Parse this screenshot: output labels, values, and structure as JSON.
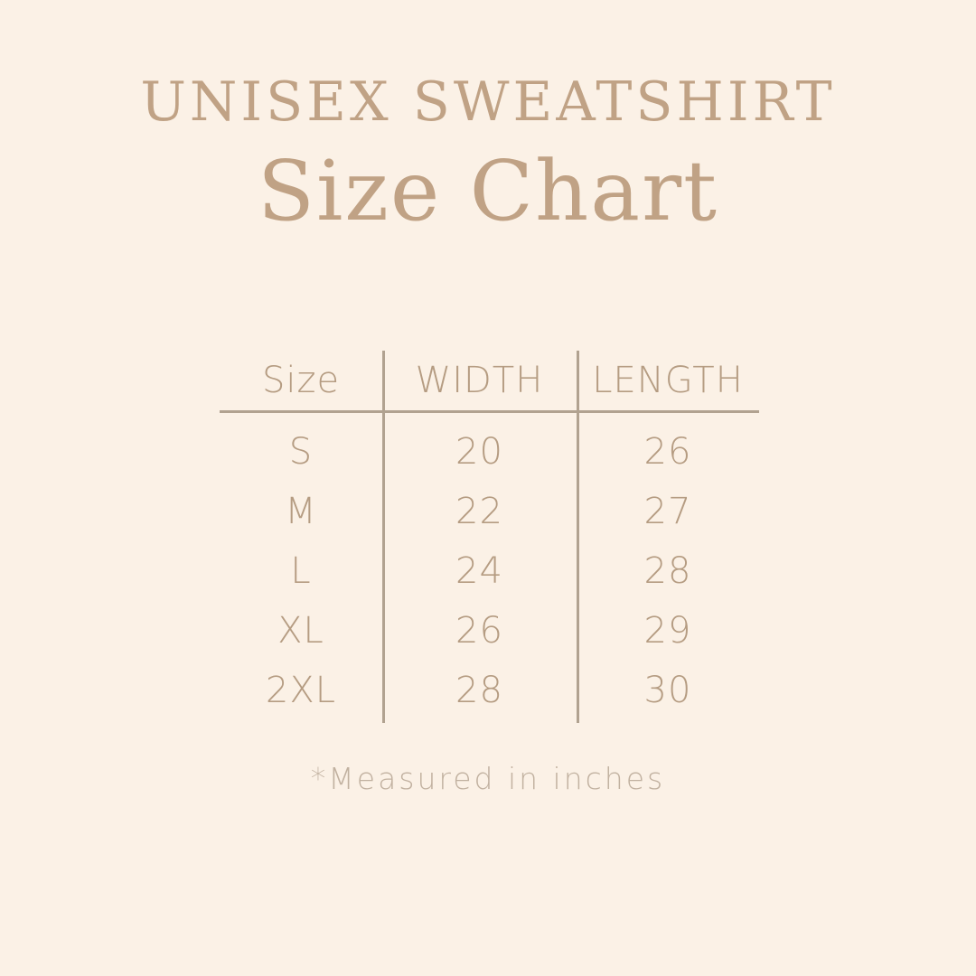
{
  "colors": {
    "bg": "#fbf1e6",
    "title": "#c0a285",
    "table_text": "#b59c82",
    "line": "#b1a290",
    "footnote": "#c1b1a0"
  },
  "header": {
    "title_line1": "UNISEX SWEATSHIRT",
    "title_line2": "Size Chart"
  },
  "table": {
    "columns": [
      "Size",
      "WIDTH",
      "LENGTH"
    ],
    "rows": [
      {
        "size": "S",
        "width": "20",
        "length": "26"
      },
      {
        "size": "M",
        "width": "22",
        "length": "27"
      },
      {
        "size": "L",
        "width": "24",
        "length": "28"
      },
      {
        "size": "XL",
        "width": "26",
        "length": "29"
      },
      {
        "size": "2XL",
        "width": "28",
        "length": "30"
      }
    ]
  },
  "footnote": "*Measured in inches",
  "chart_data": {
    "type": "table",
    "title": "UNISEX SWEATSHIRT Size Chart",
    "columns": [
      "Size",
      "WIDTH",
      "LENGTH"
    ],
    "rows": [
      [
        "S",
        20,
        26
      ],
      [
        "M",
        22,
        27
      ],
      [
        "L",
        24,
        28
      ],
      [
        "XL",
        26,
        29
      ],
      [
        "2XL",
        28,
        30
      ]
    ],
    "note": "*Measured in inches"
  }
}
